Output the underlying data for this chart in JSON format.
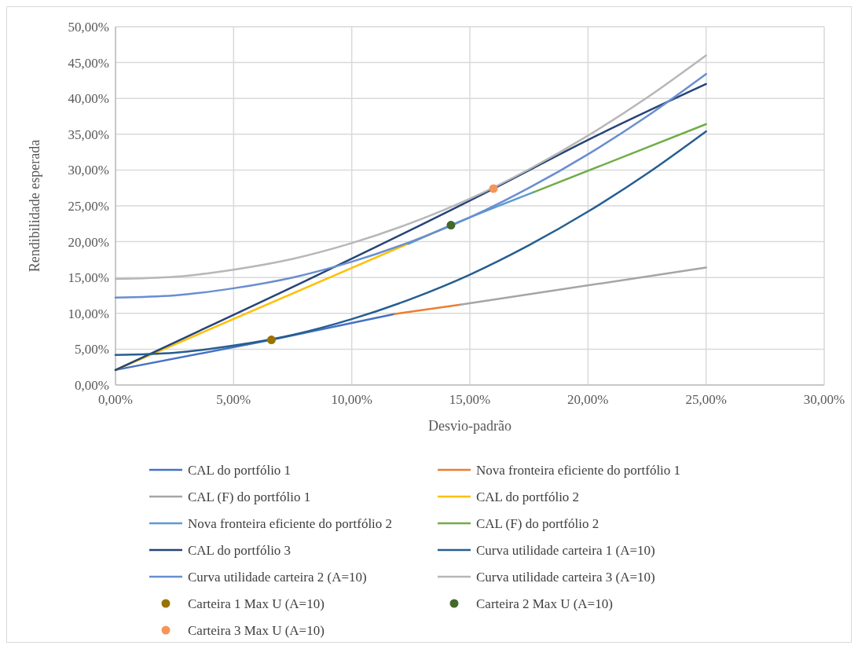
{
  "chart_data": {
    "type": "line",
    "xlabel": "Desvio-padrão",
    "ylabel": "Rendibilidade esperada",
    "xlim": [
      0,
      30
    ],
    "ylim": [
      0,
      50
    ],
    "xticks": [
      {
        "value": 0,
        "label": "0,00%"
      },
      {
        "value": 5,
        "label": "5,00%"
      },
      {
        "value": 10,
        "label": "10,00%"
      },
      {
        "value": 15,
        "label": "15,00%"
      },
      {
        "value": 20,
        "label": "20,00%"
      },
      {
        "value": 25,
        "label": "25,00%"
      },
      {
        "value": 30,
        "label": "30,00%"
      }
    ],
    "yticks": [
      {
        "value": 0,
        "label": "0,00%"
      },
      {
        "value": 5,
        "label": "5,00%"
      },
      {
        "value": 10,
        "label": "10,00%"
      },
      {
        "value": 15,
        "label": "15,00%"
      },
      {
        "value": 20,
        "label": "20,00%"
      },
      {
        "value": 25,
        "label": "25,00%"
      },
      {
        "value": 30,
        "label": "30,00%"
      },
      {
        "value": 35,
        "label": "35,00%"
      },
      {
        "value": 40,
        "label": "40,00%"
      },
      {
        "value": 45,
        "label": "45,00%"
      },
      {
        "value": 50,
        "label": "50,00%"
      }
    ],
    "grid": true,
    "legend": "bottom",
    "line_style": "solid",
    "series": [
      {
        "name": "CAL do portfólio 1",
        "color": "#4472c4",
        "x": [
          0,
          6.6,
          11.8
        ],
        "values": [
          2.1,
          6.3,
          9.9
        ]
      },
      {
        "name": "Nova fronteira eficiente do portfólio 1",
        "color": "#ed7d31",
        "x": [
          11.8,
          14.6
        ],
        "values": [
          9.9,
          11.2
        ]
      },
      {
        "name": "CAL (F) do portfólio 1",
        "color": "#a5a5a5",
        "x": [
          14.6,
          25
        ],
        "values": [
          11.2,
          16.4
        ]
      },
      {
        "name": "CAL do portfólio 2",
        "color": "#ffc000",
        "x": [
          0,
          14.2
        ],
        "values": [
          2.1,
          22.3
        ]
      },
      {
        "name": "Nova fronteira eficiente do portfólio 2",
        "color": "#5b9bd5",
        "x": [
          12.4,
          14.2,
          17.7
        ],
        "values": [
          19.7,
          22.3,
          26.9
        ]
      },
      {
        "name": "CAL (F) do portfólio 2",
        "color": "#70ad47",
        "x": [
          17.7,
          25
        ],
        "values": [
          26.9,
          36.4
        ]
      },
      {
        "name": "CAL do portfólio 3",
        "color": "#264478",
        "x": [
          0,
          16,
          20,
          25
        ],
        "values": [
          2.1,
          27.4,
          34.2,
          42
        ]
      },
      {
        "name": "Curva utilidade carteira 1 (A=10)",
        "color": "#255e91",
        "x": [
          0,
          2.5,
          5,
          7.5,
          10,
          12.5,
          15,
          17.5,
          20,
          22.5,
          25
        ],
        "values": [
          4.2,
          4.5,
          5.5,
          7.0,
          9.2,
          12.0,
          15.4,
          19.5,
          24.2,
          29.5,
          35.4
        ]
      },
      {
        "name": "Curva utilidade carteira 2 (A=10)",
        "color": "#698ed0",
        "x": [
          0,
          2.5,
          5,
          7.5,
          10,
          12.5,
          15,
          17.5,
          20,
          22.5,
          25
        ],
        "values": [
          12.2,
          12.5,
          13.5,
          15.0,
          17.2,
          20.0,
          23.4,
          27.5,
          32.2,
          37.5,
          43.4
        ]
      },
      {
        "name": "Curva utilidade carteira 3 (A=10)",
        "color": "#b7b7b7",
        "x": [
          0,
          2.5,
          5,
          7.5,
          10,
          12.5,
          15,
          17.5,
          20,
          22.5,
          25
        ],
        "values": [
          14.8,
          15.1,
          16.1,
          17.6,
          19.8,
          22.6,
          26.0,
          30.1,
          34.8,
          40.1,
          46.0
        ]
      },
      {
        "name": "Carteira 1 Max U (A=10)",
        "type": "scatter",
        "marker": "circle",
        "color": "#997300",
        "x": [
          6.6
        ],
        "values": [
          6.3
        ]
      },
      {
        "name": "Carteira 2 Max U (A=10)",
        "type": "scatter",
        "marker": "circle",
        "color": "#43682b",
        "x": [
          14.2
        ],
        "values": [
          22.3
        ]
      },
      {
        "name": "Carteira 3 Max U (A=10)",
        "type": "scatter",
        "marker": "circle",
        "color": "#f4965a",
        "x": [
          16
        ],
        "values": [
          27.4
        ]
      }
    ]
  }
}
